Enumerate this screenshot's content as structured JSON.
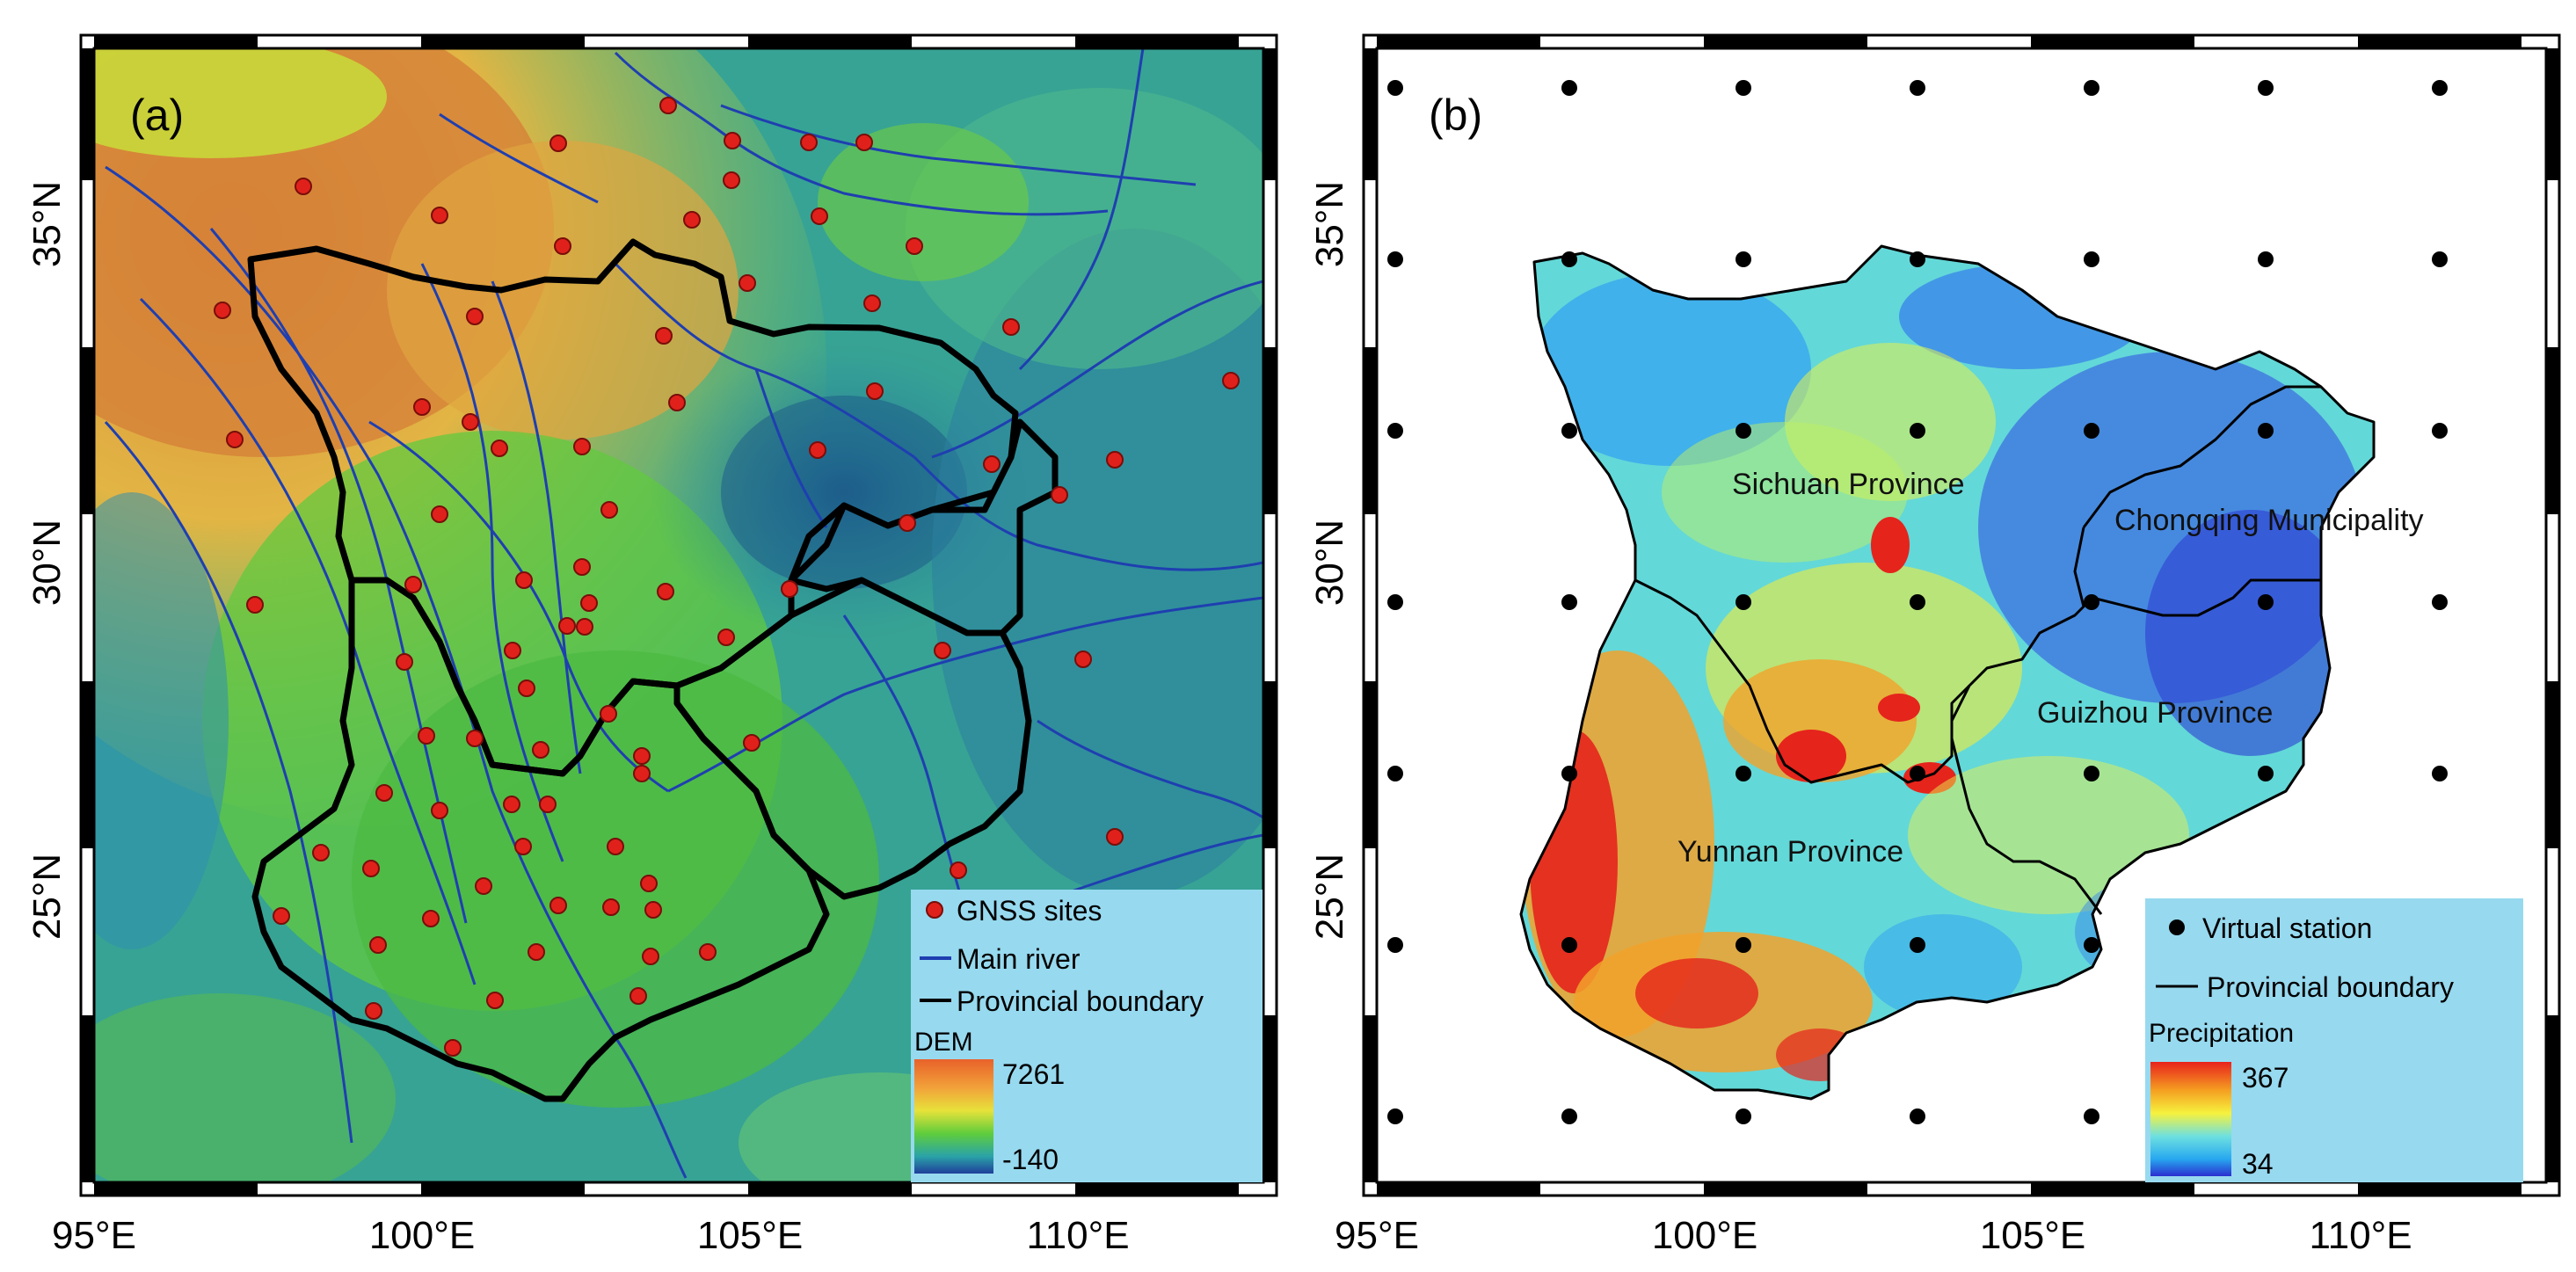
{
  "panel_a": {
    "label": "(a)",
    "lat_ticks": [
      "35°N",
      "30°N",
      "25°N"
    ],
    "lon_ticks": [
      "95°E",
      "100°E",
      "105°E",
      "110°E"
    ],
    "legend": {
      "gnss_label": "GNSS sites",
      "river_label": "Main river",
      "boundary_label": "Provincial boundary",
      "dem_title": "DEM",
      "dem_max": "7261",
      "dem_min": "-140"
    },
    "colors": {
      "gnss_fill": "#e0211b",
      "river": "#1f3fb0",
      "boundary": "#000000",
      "legend_bg": "#97d9ef"
    }
  },
  "panel_b": {
    "label": "(b)",
    "lat_ticks": [
      "35°N",
      "30°N",
      "25°N"
    ],
    "lon_ticks": [
      "95°E",
      "100°E",
      "105°E",
      "110°E"
    ],
    "region_labels": [
      "Sichuan Province",
      "Chongqing Municipality",
      "Guizhou Province",
      "Yunnan Province"
    ],
    "legend": {
      "station_label": "Virtual station",
      "boundary_label": "Provincial boundary",
      "precip_title": "Precipitation",
      "precip_max": "367",
      "precip_min": "34"
    },
    "colors": {
      "station": "#000000",
      "legend_bg": "#97d9ef"
    }
  }
}
